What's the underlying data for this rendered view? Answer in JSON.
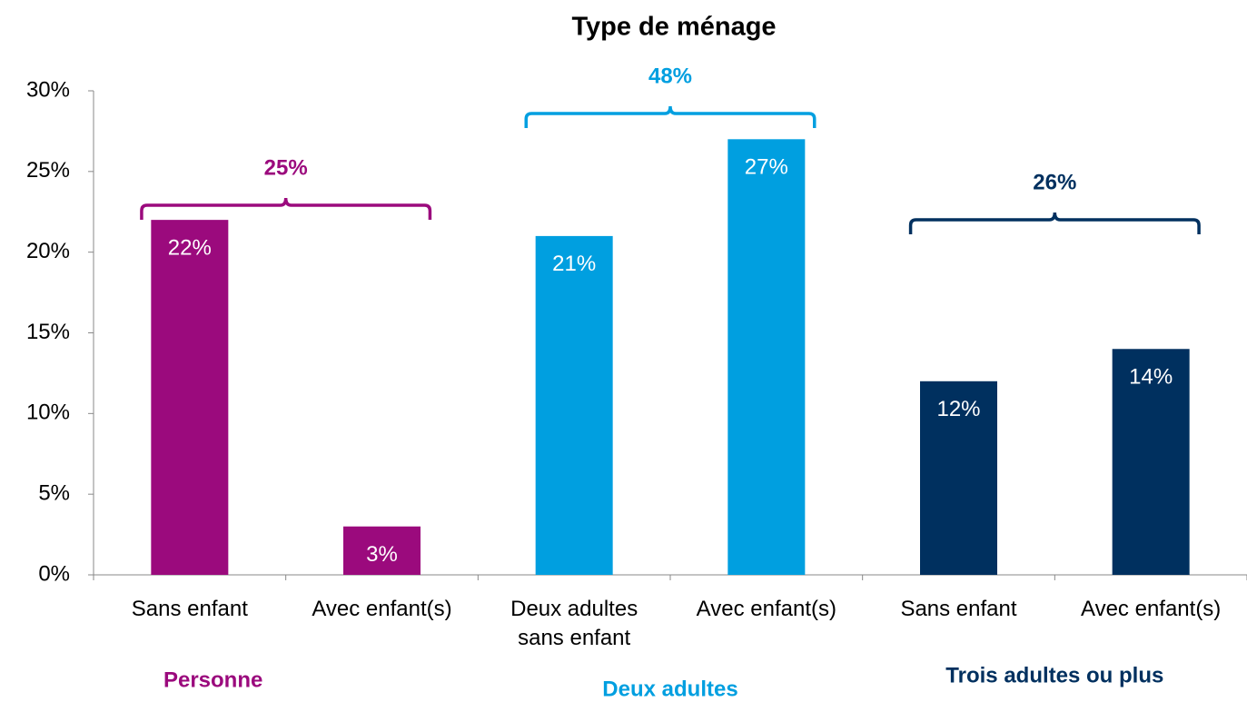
{
  "chart_data": {
    "type": "bar",
    "title": "Type de ménage",
    "categories": [
      "Sans enfant",
      "Avec enfant(s)",
      "Deux adultes sans enfant",
      "Avec enfant(s)",
      "Sans enfant",
      "Avec enfant(s)"
    ],
    "values": [
      22,
      3,
      21,
      27,
      12,
      14
    ],
    "value_labels": [
      "22%",
      "3%",
      "21%",
      "27%",
      "12%",
      "14%"
    ],
    "colors": [
      "#9b0a7d",
      "#9b0a7d",
      "#009fe0",
      "#009fe0",
      "#00305f",
      "#00305f"
    ],
    "groups": [
      {
        "name": "Personne",
        "total": 25,
        "total_label": "25%",
        "color": "#9b0a7d"
      },
      {
        "name": "Deux adultes",
        "total": 48,
        "total_label": "48%",
        "color": "#009fe0"
      },
      {
        "name": "Trois adultes ou plus",
        "total": 26,
        "total_label": "26%",
        "color": "#00305f"
      }
    ],
    "ylim": [
      0,
      30
    ],
    "yticks": [
      {
        "value": 0,
        "label": "0%"
      },
      {
        "value": 5,
        "label": "5%"
      },
      {
        "value": 10,
        "label": "10%"
      },
      {
        "value": 15,
        "label": "15%"
      },
      {
        "value": 20,
        "label": "20%"
      },
      {
        "value": 25,
        "label": "25%"
      },
      {
        "value": 30,
        "label": "30%"
      }
    ],
    "grid": false
  }
}
